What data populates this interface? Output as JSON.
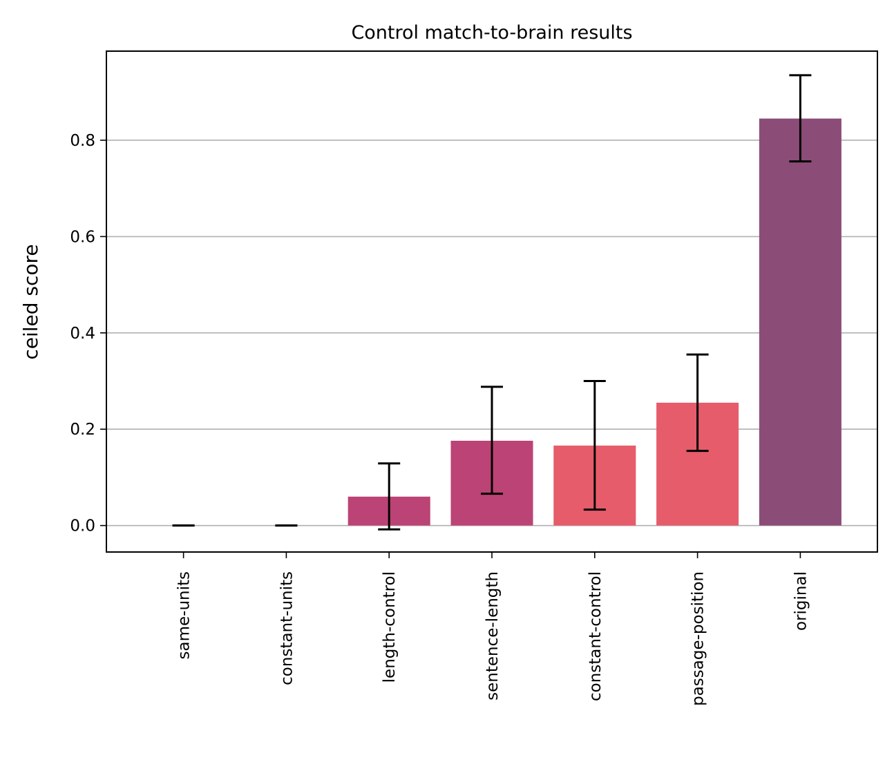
{
  "chart_data": {
    "type": "bar",
    "title": "Control match-to-brain results",
    "xlabel": "",
    "ylabel": "ceiled score",
    "ylim": [
      -0.055,
      0.985
    ],
    "yticks": [
      0.0,
      0.2,
      0.4,
      0.6,
      0.8
    ],
    "ytick_labels": [
      "0.0",
      "0.2",
      "0.4",
      "0.6",
      "0.8"
    ],
    "grid": "y",
    "categories": [
      "same-units",
      "constant-units",
      "length-control",
      "sentence-length",
      "constant-control",
      "passage-position",
      "original"
    ],
    "values": [
      0.0,
      0.0,
      0.06,
      0.176,
      0.166,
      0.255,
      0.845
    ],
    "error_low": [
      0.0,
      0.0,
      -0.008,
      0.066,
      0.033,
      0.155,
      0.756
    ],
    "error_high": [
      0.0,
      0.0,
      0.129,
      0.288,
      0.3,
      0.355,
      0.935
    ],
    "colors": [
      "#bc4375",
      "#bc4375",
      "#bc4375",
      "#bc4375",
      "#e65c6b",
      "#e65c6b",
      "#8b4c78"
    ]
  }
}
